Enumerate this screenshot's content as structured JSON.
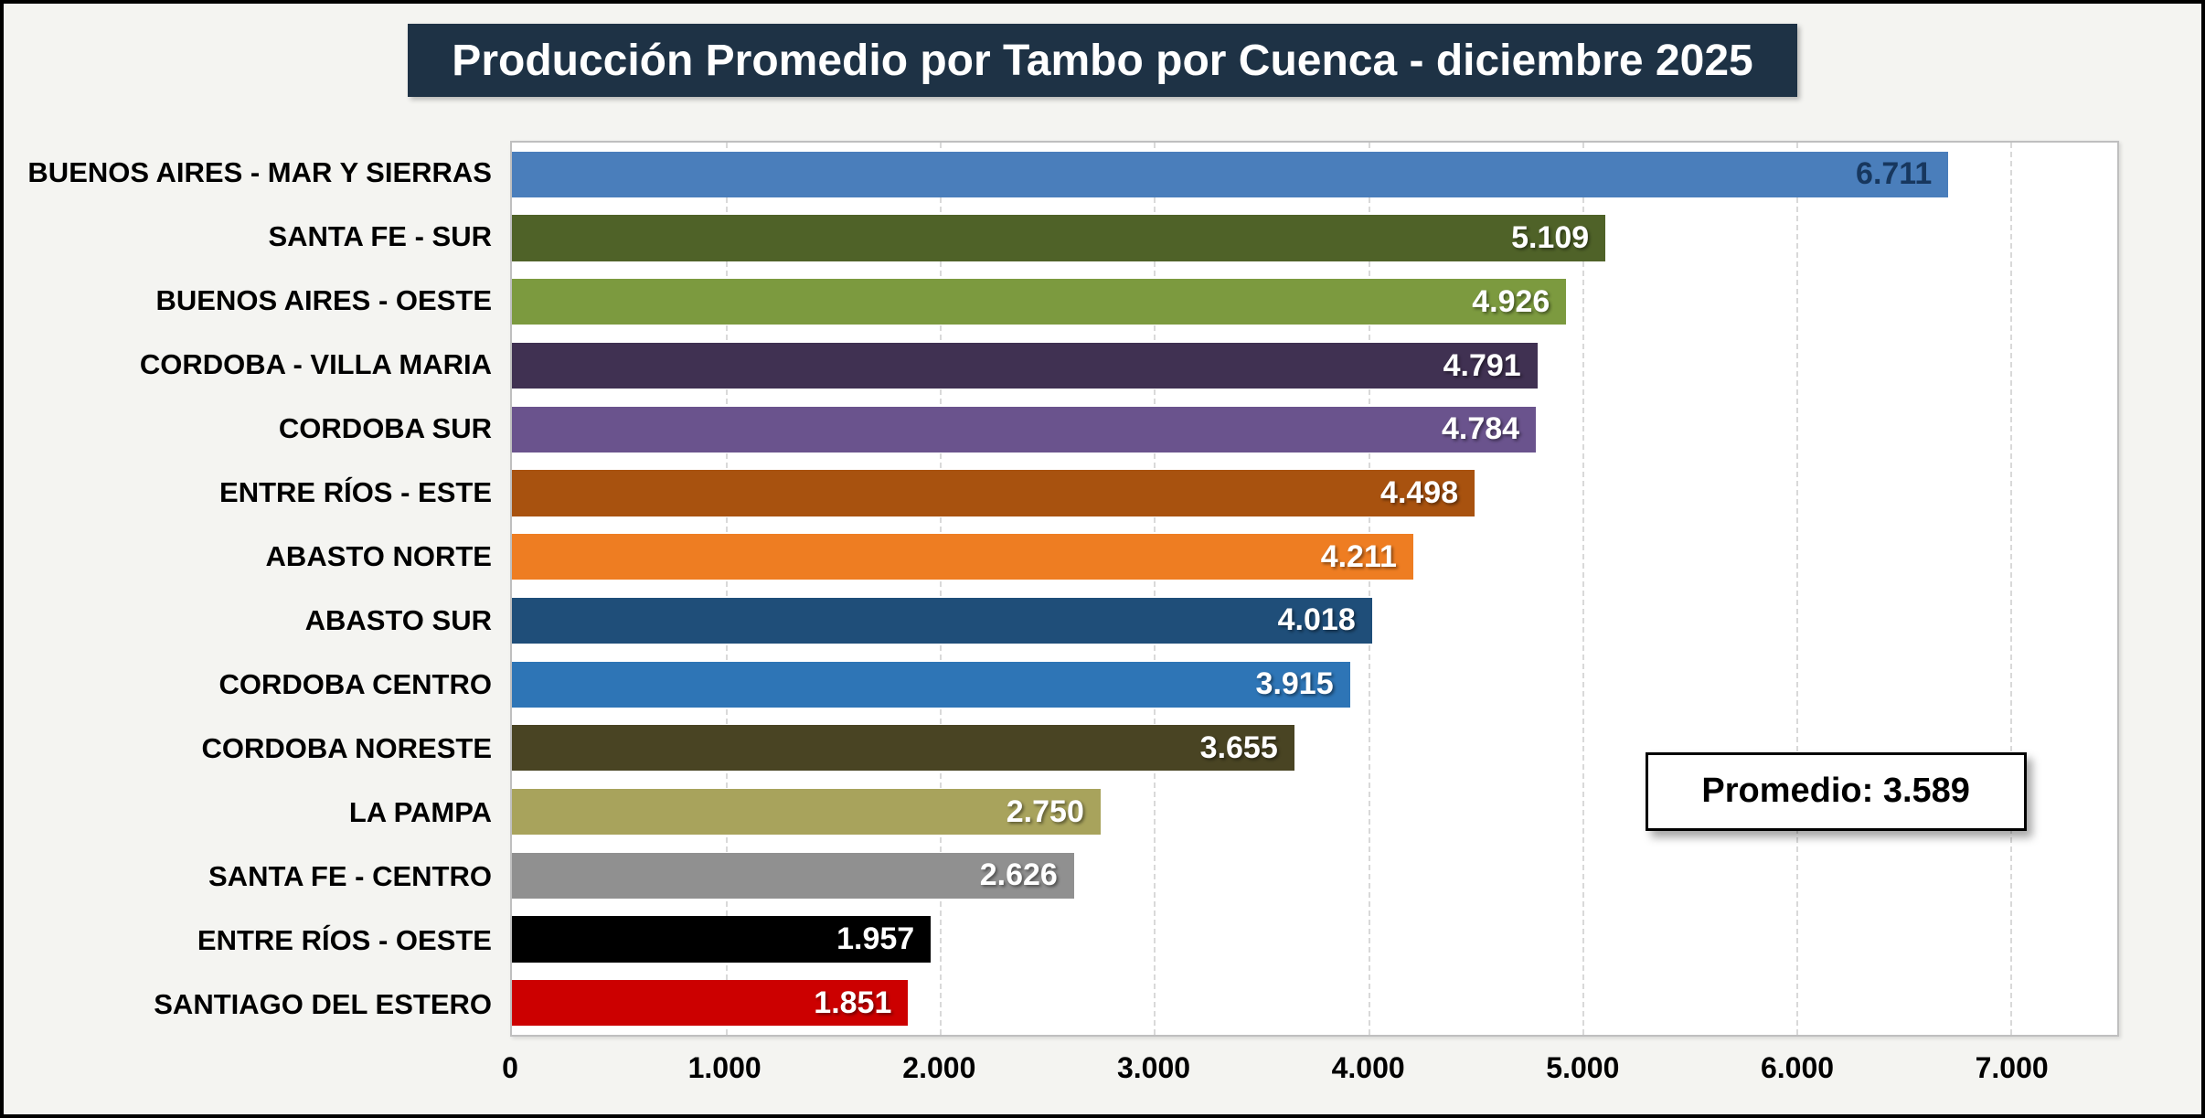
{
  "title": "Producción Promedio por Tambo por Cuenca - diciembre 2025",
  "chart_data": {
    "type": "bar",
    "orientation": "horizontal",
    "title": "Producción Promedio por Tambo por Cuenca - diciembre 2025",
    "xlabel": "",
    "ylabel": "",
    "xlim": [
      0,
      7500
    ],
    "grid": "dashed-vertical",
    "legend": "none",
    "categories": [
      "BUENOS AIRES - MAR Y SIERRAS",
      "SANTA FE - SUR",
      "BUENOS AIRES - OESTE",
      "CORDOBA - VILLA MARIA",
      "CORDOBA SUR",
      "ENTRE RÍOS - ESTE",
      "ABASTO NORTE",
      "ABASTO SUR",
      "CORDOBA CENTRO",
      "CORDOBA NORESTE",
      "LA PAMPA",
      "SANTA FE - CENTRO",
      "ENTRE RÍOS - OESTE",
      "SANTIAGO DEL ESTERO"
    ],
    "values": [
      6711,
      5109,
      4926,
      4791,
      4784,
      4498,
      4211,
      4018,
      3915,
      3655,
      2750,
      2626,
      1957,
      1851
    ],
    "value_labels": [
      "6.711",
      "5.109",
      "4.926",
      "4.791",
      "4.784",
      "4.498",
      "4.211",
      "4.018",
      "3.915",
      "3.655",
      "2.750",
      "2.626",
      "1.957",
      "1.851"
    ],
    "bar_colors": [
      "#4A7EBB",
      "#4F6228",
      "#7C9A3F",
      "#403152",
      "#6A538D",
      "#A8520F",
      "#EE7D22",
      "#1F4E79",
      "#2E75B6",
      "#494423",
      "#A8A35C",
      "#909090",
      "#000000",
      "#CC0000"
    ],
    "value_label_colors": [
      "#17375E",
      "#FFFFFF",
      "#FFFFFF",
      "#FFFFFF",
      "#FFFFFF",
      "#FFFFFF",
      "#FFFFFF",
      "#FFFFFF",
      "#FFFFFF",
      "#FFFFFF",
      "#FFFFFF",
      "#FFFFFF",
      "#FFFFFF",
      "#FFFFFF"
    ],
    "x_ticks": {
      "values": [
        0,
        1000,
        2000,
        3000,
        4000,
        5000,
        6000,
        7000
      ],
      "labels": [
        "0",
        "1.000",
        "2.000",
        "3.000",
        "4.000",
        "5.000",
        "6.000",
        "7.000"
      ]
    },
    "average": {
      "value": 3589,
      "label": "Promedio: 3.589"
    },
    "colors": {
      "title_bg": "#1E3245",
      "title_text": "#FFFFFF",
      "plot_bg": "#FFFFFF",
      "grid": "#D9D9D9",
      "outer_bg": "#F4F4F1",
      "frame_border": "#000000"
    }
  }
}
